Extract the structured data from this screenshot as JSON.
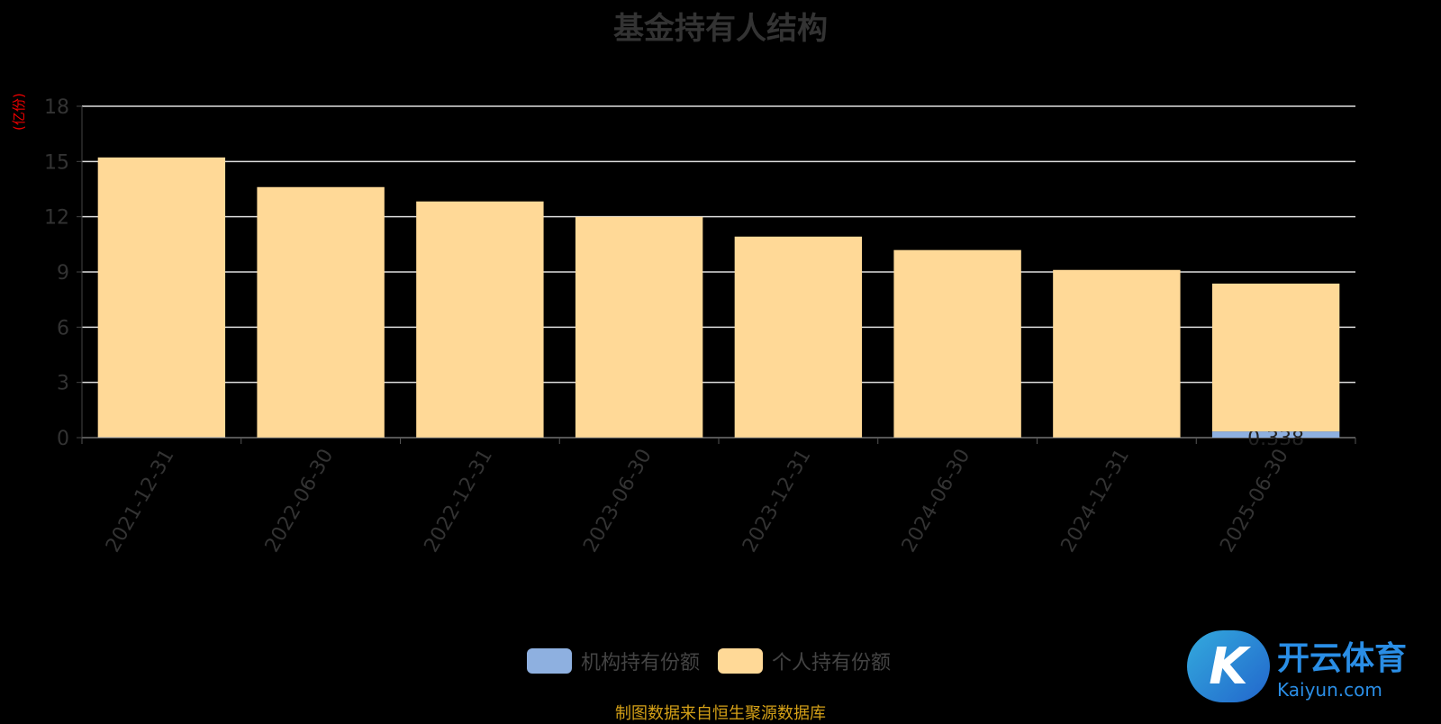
{
  "chart_data": {
    "type": "bar",
    "stacked": true,
    "title": "基金持有人结构",
    "ylabel": "(亿份)",
    "ylim": [
      0,
      18
    ],
    "yticks": [
      0,
      3,
      6,
      9,
      12,
      15,
      18
    ],
    "grid": true,
    "legend_position": "bottom",
    "categories": [
      "2021-12-31",
      "2022-06-30",
      "2022-12-31",
      "2023-06-30",
      "2023-12-31",
      "2024-06-30",
      "2024-12-31",
      "2025-06-30"
    ],
    "series": [
      {
        "name": "机构持有份额",
        "color": "#8eb0e0",
        "values": [
          0.02,
          0.01,
          0.01,
          0.01,
          0.01,
          0.01,
          0.01,
          0.338
        ],
        "labels": [
          "",
          "",
          "",
          "",
          "",
          "",
          "",
          "0.338"
        ]
      },
      {
        "name": "个人持有份额",
        "color": "#ffd997",
        "values": [
          15.2,
          13.6,
          12.82,
          11.99,
          10.91,
          10.18,
          9.1,
          8.03
        ]
      }
    ]
  },
  "source": "制图数据来自恒生聚源数据库",
  "logo": {
    "text": "开云体育",
    "sub": "Kaiyun.com",
    "mark": "K"
  }
}
